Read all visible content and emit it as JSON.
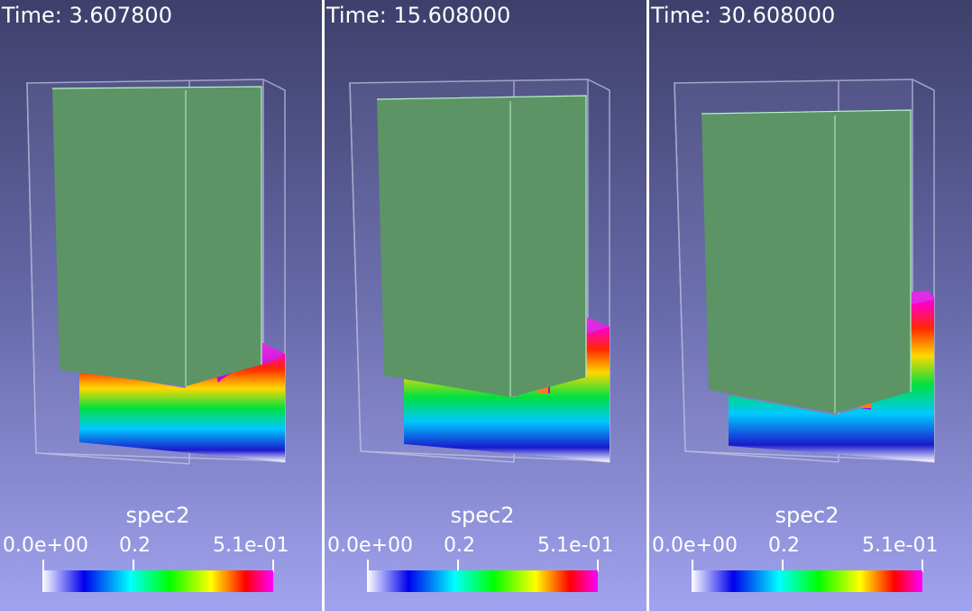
{
  "panels": [
    {
      "time_text": "Time: 3.607800",
      "legend": {
        "title": "spec2",
        "min_label": "0.0e+00",
        "mid_label": "0.2",
        "max_label": "5.1e-01"
      }
    },
    {
      "time_text": "Time: 15.608000",
      "legend": {
        "title": "spec2",
        "min_label": "0.0e+00",
        "mid_label": "0.2",
        "max_label": "5.1e-01"
      }
    },
    {
      "time_text": "Time: 30.608000",
      "legend": {
        "title": "spec2",
        "min_label": "0.0e+00",
        "mid_label": "0.2",
        "max_label": "5.1e-01"
      }
    }
  ],
  "colors": {
    "background_top": "#3e3f6b",
    "background_bottom": "#a1a3ef",
    "solid_block": "#5c9466",
    "block_edge": "#b6f5c4",
    "container_edge": "#c9cbe8"
  },
  "colormap": [
    "#ffffff",
    "#0000ee",
    "#00ffff",
    "#00ff00",
    "#ffff00",
    "#ff0000",
    "#ff00ff"
  ]
}
